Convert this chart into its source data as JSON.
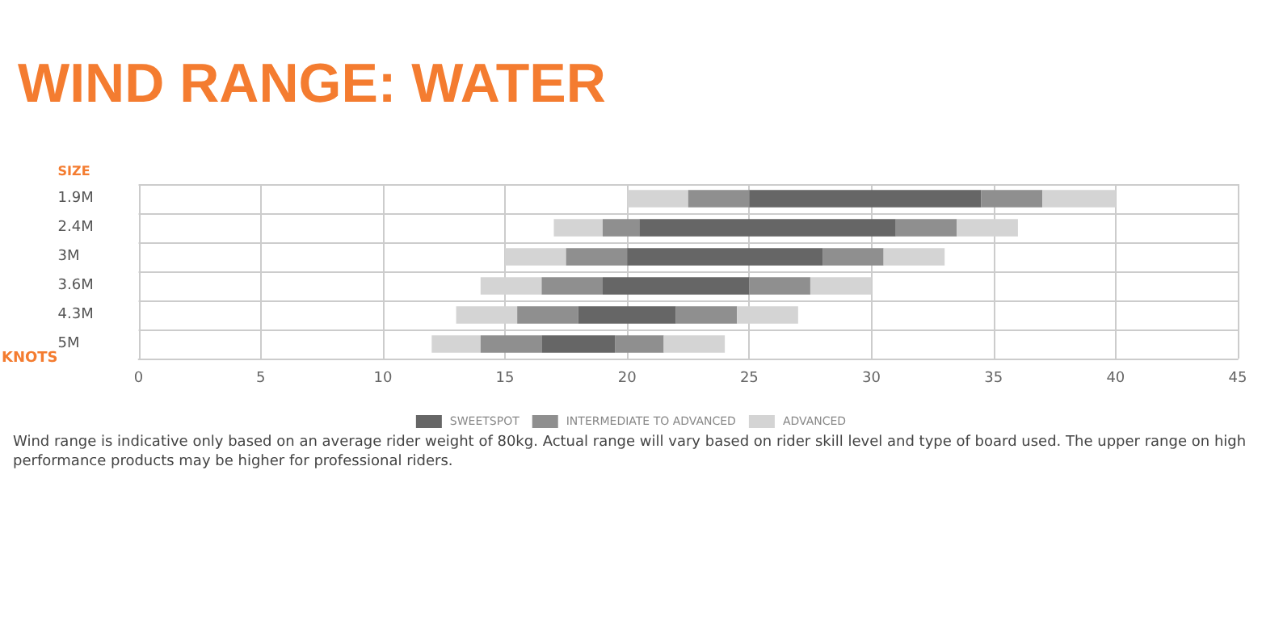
{
  "chart_data": {
    "type": "bar",
    "orientation": "horizontal",
    "title": "WIND RANGE: WATER",
    "xlabel": "KNOTS",
    "ylabel": "SIZE",
    "categories": [
      "1.9M",
      "2.4M",
      "3M",
      "3.6M",
      "4.3M",
      "5M"
    ],
    "series": [
      {
        "name": "ADVANCED",
        "color": "#d4d4d4",
        "base": [
          20,
          17,
          15,
          14,
          13,
          12
        ],
        "values": [
          2.5,
          2,
          2.5,
          2.5,
          2.5,
          2
        ]
      },
      {
        "name": "INTERMEDIATE TO ADVANCED",
        "color": "#8f8f8f",
        "base": [
          22.5,
          19,
          17.5,
          16.5,
          15.5,
          14
        ],
        "values": [
          2.5,
          1.5,
          2.5,
          2.5,
          2.5,
          2.5
        ]
      },
      {
        "name": "SWEETSPOT",
        "color": "#666666",
        "base": [
          25,
          20.5,
          20,
          19,
          18,
          16.5
        ],
        "values": [
          9.5,
          10.5,
          8,
          6,
          4,
          3
        ]
      },
      {
        "color": "#8f8f8f",
        "base": [
          34.5,
          31,
          28,
          25,
          22,
          19.5
        ],
        "values": [
          2.5,
          2.5,
          2.5,
          2.5,
          2.5,
          2
        ]
      },
      {
        "color": "#d4d4d4",
        "base": [
          37,
          33.5,
          30.5,
          27.5,
          24.5,
          21.5
        ],
        "values": [
          3,
          2.5,
          2.5,
          2.5,
          2.5,
          2.5
        ]
      }
    ],
    "xlim": [
      0,
      45
    ],
    "xticks": [
      0,
      5,
      10,
      15,
      20,
      25,
      30,
      35,
      40,
      45
    ],
    "grid": true,
    "legend": "bottom",
    "annotations": [
      "Wind range is indicative only based on an average rider weight of 80kg. Actual range will vary based on rider skill level and type of board used. The upper range on high performance products may be higher for professional riders."
    ]
  }
}
